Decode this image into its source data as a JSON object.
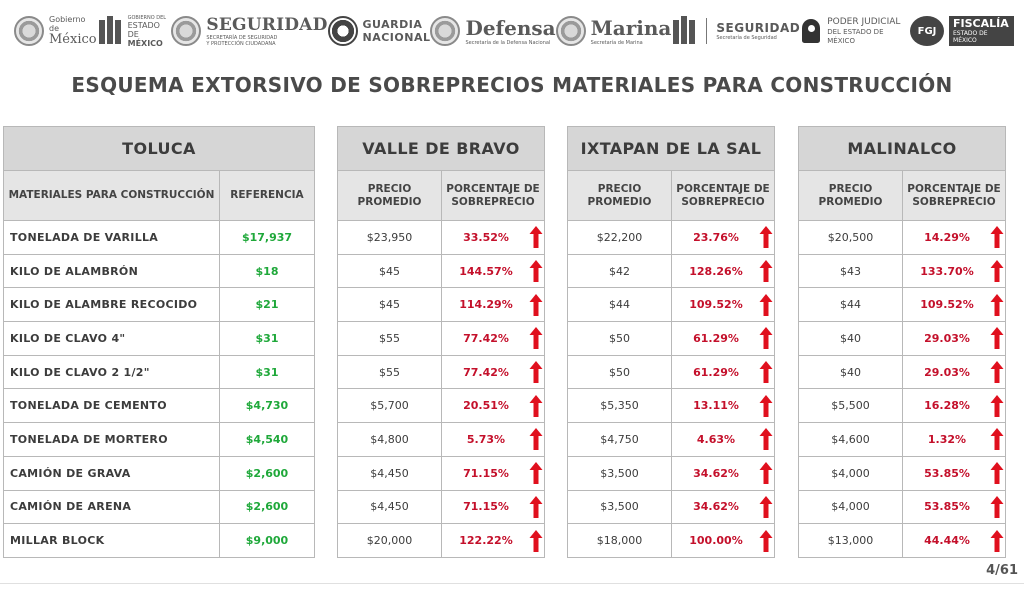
{
  "header_logos": {
    "gobierno_mexico": {
      "line1": "Gobierno de",
      "line2": "México"
    },
    "edomex": {
      "line1": "GOBIERNO DEL",
      "line2": "ESTADO DE",
      "line3": "MÉXICO"
    },
    "seguridad": {
      "name": "SEGURIDAD",
      "sub1": "SECRETARÍA DE SEGURIDAD",
      "sub2": "Y PROTECCIÓN CIUDADANA"
    },
    "guardia": {
      "line1": "GUARDIA",
      "line2": "NACIONAL"
    },
    "defensa": {
      "name": "Defensa",
      "sub": "Secretaría de la Defensa Nacional"
    },
    "marina": {
      "name": "Marina",
      "sub": "Secretaría de Marina"
    },
    "seguridad_edomex": {
      "name": "SEGURIDAD",
      "sub": "Secretaría de Seguridad"
    },
    "poder_judicial": {
      "line1": "PODER JUDICIAL",
      "line2": "DEL ESTADO DE MÉXICO"
    },
    "fiscalia": {
      "badge": "FGJ",
      "line1": "FISCALÍA",
      "line2": "ESTADO DE MÉXICO"
    }
  },
  "title": "ESQUEMA EXTORSIVO DE SOBREPRECIOS MATERIALES PARA CONSTRUCCIÓN",
  "toluca": {
    "city": "TOLUCA",
    "col_material": "MATERIALES PARA CONSTRUCCIÓN",
    "col_ref": "REFERENCIA",
    "rows": [
      {
        "material": "TONELADA DE VARILLA",
        "ref": "$17,937"
      },
      {
        "material": "KILO DE ALAMBRÓN",
        "ref": "$18"
      },
      {
        "material": "KILO DE ALAMBRE RECOCIDO",
        "ref": "$21"
      },
      {
        "material": "KILO DE CLAVO 4\"",
        "ref": "$31"
      },
      {
        "material": "KILO DE CLAVO 2 1/2\"",
        "ref": "$31"
      },
      {
        "material": "TONELADA DE CEMENTO",
        "ref": "$4,730"
      },
      {
        "material": "TONELADA DE MORTERO",
        "ref": "$4,540"
      },
      {
        "material": "CAMIÓN DE GRAVA",
        "ref": "$2,600"
      },
      {
        "material": "CAMIÓN DE ARENA",
        "ref": "$2,600"
      },
      {
        "material": "MILLAR BLOCK",
        "ref": "$9,000"
      }
    ]
  },
  "col_price": "PRECIO PROMEDIO",
  "col_pct": "PORCENTAJE DE SOBREPRECIO",
  "regions": [
    {
      "city": "VALLE DE BRAVO",
      "rows": [
        {
          "price": "$23,950",
          "pct": "33.52%"
        },
        {
          "price": "$45",
          "pct": "144.57%"
        },
        {
          "price": "$45",
          "pct": "114.29%"
        },
        {
          "price": "$55",
          "pct": "77.42%"
        },
        {
          "price": "$55",
          "pct": "77.42%"
        },
        {
          "price": "$5,700",
          "pct": "20.51%"
        },
        {
          "price": "$4,800",
          "pct": "5.73%"
        },
        {
          "price": "$4,450",
          "pct": "71.15%"
        },
        {
          "price": "$4,450",
          "pct": "71.15%"
        },
        {
          "price": "$20,000",
          "pct": "122.22%"
        }
      ]
    },
    {
      "city": "IXTAPAN DE LA SAL",
      "rows": [
        {
          "price": "$22,200",
          "pct": "23.76%"
        },
        {
          "price": "$42",
          "pct": "128.26%"
        },
        {
          "price": "$44",
          "pct": "109.52%"
        },
        {
          "price": "$50",
          "pct": "61.29%"
        },
        {
          "price": "$50",
          "pct": "61.29%"
        },
        {
          "price": "$5,350",
          "pct": "13.11%"
        },
        {
          "price": "$4,750",
          "pct": "4.63%"
        },
        {
          "price": "$3,500",
          "pct": "34.62%"
        },
        {
          "price": "$3,500",
          "pct": "34.62%"
        },
        {
          "price": "$18,000",
          "pct": "100.00%"
        }
      ]
    },
    {
      "city": "MALINALCO",
      "rows": [
        {
          "price": "$20,500",
          "pct": "14.29%"
        },
        {
          "price": "$43",
          "pct": "133.70%"
        },
        {
          "price": "$44",
          "pct": "109.52%"
        },
        {
          "price": "$40",
          "pct": "29.03%"
        },
        {
          "price": "$40",
          "pct": "29.03%"
        },
        {
          "price": "$5,500",
          "pct": "16.28%"
        },
        {
          "price": "$4,600",
          "pct": "1.32%"
        },
        {
          "price": "$4,000",
          "pct": "53.85%"
        },
        {
          "price": "$4,000",
          "pct": "53.85%"
        },
        {
          "price": "$13,000",
          "pct": "44.44%"
        }
      ]
    }
  ],
  "colors": {
    "ref_green": "#1fa83a",
    "pct_red": "#c4102b",
    "arrow_red": "#e0101e"
  },
  "page_number": "4/61"
}
